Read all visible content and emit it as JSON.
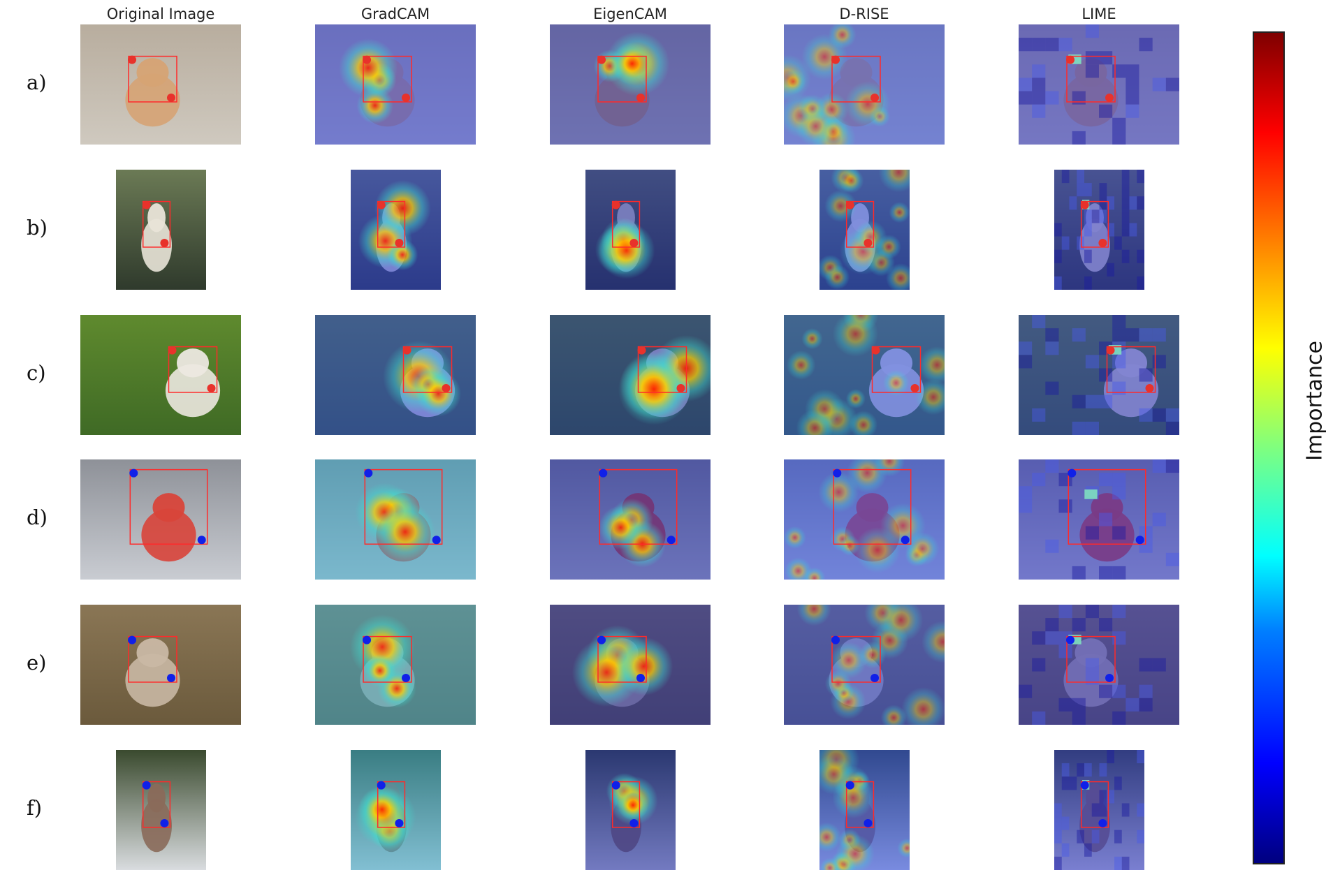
{
  "columns": [
    {
      "label": "Original Image",
      "kind": "original"
    },
    {
      "label": "GradCAM",
      "kind": "gradcam"
    },
    {
      "label": "EigenCAM",
      "kind": "eigencam"
    },
    {
      "label": "D-RISE",
      "kind": "drise"
    },
    {
      "label": "LIME",
      "kind": "lime"
    }
  ],
  "rows": [
    {
      "label": "a)",
      "subject": "dog",
      "orientation": "landscape",
      "palette": [
        "#cfc9bf",
        "#b8ad9e",
        "#d6a374"
      ],
      "marker_color": "#e8322b"
    },
    {
      "label": "b)",
      "subject": "dog",
      "orientation": "portrait",
      "palette": [
        "#2f3a2c",
        "#6b7a55",
        "#e9e4d8"
      ],
      "marker_color": "#e8322b"
    },
    {
      "label": "c)",
      "subject": "dog",
      "orientation": "landscape",
      "palette": [
        "#3f6a25",
        "#5f8a2e",
        "#ece8e0"
      ],
      "marker_color": "#e8322b"
    },
    {
      "label": "d)",
      "subject": "cat",
      "orientation": "landscape",
      "palette": [
        "#c9ccd2",
        "#8e9198",
        "#d8443a"
      ],
      "marker_color": "#1020e8"
    },
    {
      "label": "e)",
      "subject": "cat",
      "orientation": "landscape",
      "palette": [
        "#6b5a3c",
        "#8a7655",
        "#c9b8a4"
      ],
      "marker_color": "#1020e8"
    },
    {
      "label": "f)",
      "subject": "cat",
      "orientation": "portrait",
      "palette": [
        "#d9dcdf",
        "#3a4a2e",
        "#8a6a5a"
      ],
      "marker_color": "#1020e8"
    }
  ],
  "colorbar": {
    "label": "Importance",
    "colormap": "jet"
  }
}
